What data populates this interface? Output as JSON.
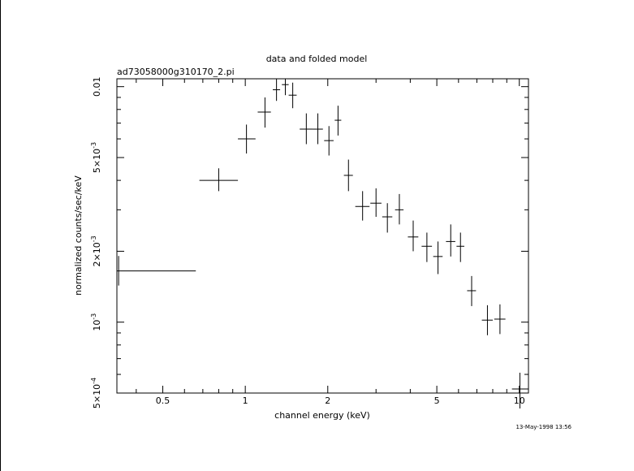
{
  "chart_data": {
    "type": "scatter",
    "title": "data and folded model",
    "subtitle": "ad73058000g310170_2.pi",
    "xlabel": "channel energy (keV)",
    "ylabel": "normalized counts/sec/keV",
    "timestamp": "13-May-1998 13:56",
    "x_scale": "log",
    "y_scale": "log",
    "xlim": [
      0.34,
      10.8
    ],
    "ylim": [
      0.0005,
      0.0108
    ],
    "x_ticks": [
      {
        "value": 0.5,
        "label": "0.5"
      },
      {
        "value": 1,
        "label": "1"
      },
      {
        "value": 2,
        "label": "2"
      },
      {
        "value": 5,
        "label": "5"
      },
      {
        "value": 10,
        "label": "10"
      }
    ],
    "y_ticks": [
      {
        "value": 0.0005,
        "mant": "5",
        "exp": "-4"
      },
      {
        "value": 0.001,
        "mant": "",
        "exp": "-3"
      },
      {
        "value": 0.002,
        "mant": "2",
        "exp": "-3"
      },
      {
        "value": 0.005,
        "mant": "5",
        "exp": "-3"
      },
      {
        "value": 0.01,
        "mant": "0.01",
        "exp": ""
      }
    ],
    "points": [
      {
        "x": 0.345,
        "xlo": 0.34,
        "xhi": 0.66,
        "y": 0.00165,
        "ylo": 0.00143,
        "yhi": 0.00191
      },
      {
        "x": 0.8,
        "xlo": 0.68,
        "xhi": 0.94,
        "y": 0.004,
        "ylo": 0.0036,
        "yhi": 0.0045
      },
      {
        "x": 1.01,
        "xlo": 0.94,
        "xhi": 1.09,
        "y": 0.006,
        "ylo": 0.0052,
        "yhi": 0.0069
      },
      {
        "x": 1.18,
        "xlo": 1.11,
        "xhi": 1.24,
        "y": 0.0078,
        "ylo": 0.0067,
        "yhi": 0.009
      },
      {
        "x": 1.3,
        "xlo": 1.26,
        "xhi": 1.34,
        "y": 0.0097,
        "ylo": 0.0087,
        "yhi": 0.0108
      },
      {
        "x": 1.4,
        "xlo": 1.36,
        "xhi": 1.44,
        "y": 0.0102,
        "ylo": 0.0092,
        "yhi": 0.0108
      },
      {
        "x": 1.49,
        "xlo": 1.44,
        "xhi": 1.54,
        "y": 0.0092,
        "ylo": 0.0081,
        "yhi": 0.0104
      },
      {
        "x": 1.67,
        "xlo": 1.58,
        "xhi": 1.76,
        "y": 0.0066,
        "ylo": 0.0057,
        "yhi": 0.0077
      },
      {
        "x": 1.84,
        "xlo": 1.76,
        "xhi": 1.92,
        "y": 0.0066,
        "ylo": 0.0057,
        "yhi": 0.0077
      },
      {
        "x": 2.02,
        "xlo": 1.94,
        "xhi": 2.1,
        "y": 0.0059,
        "ylo": 0.0051,
        "yhi": 0.0068
      },
      {
        "x": 2.18,
        "xlo": 2.12,
        "xhi": 2.24,
        "y": 0.0072,
        "ylo": 0.0062,
        "yhi": 0.0083
      },
      {
        "x": 2.38,
        "xlo": 2.29,
        "xhi": 2.47,
        "y": 0.0042,
        "ylo": 0.0036,
        "yhi": 0.0049
      },
      {
        "x": 2.68,
        "xlo": 2.52,
        "xhi": 2.84,
        "y": 0.0031,
        "ylo": 0.0027,
        "yhi": 0.0036
      },
      {
        "x": 3.0,
        "xlo": 2.86,
        "xhi": 3.14,
        "y": 0.0032,
        "ylo": 0.0028,
        "yhi": 0.0037
      },
      {
        "x": 3.3,
        "xlo": 3.16,
        "xhi": 3.44,
        "y": 0.0028,
        "ylo": 0.0024,
        "yhi": 0.0032
      },
      {
        "x": 3.65,
        "xlo": 3.52,
        "xhi": 3.78,
        "y": 0.003,
        "ylo": 0.0026,
        "yhi": 0.0035
      },
      {
        "x": 4.1,
        "xlo": 3.92,
        "xhi": 4.28,
        "y": 0.0023,
        "ylo": 0.002,
        "yhi": 0.0027
      },
      {
        "x": 4.6,
        "xlo": 4.4,
        "xhi": 4.8,
        "y": 0.0021,
        "ylo": 0.0018,
        "yhi": 0.0024
      },
      {
        "x": 5.05,
        "xlo": 4.85,
        "xhi": 5.25,
        "y": 0.0019,
        "ylo": 0.0016,
        "yhi": 0.0022
      },
      {
        "x": 5.62,
        "xlo": 5.4,
        "xhi": 5.84,
        "y": 0.0022,
        "ylo": 0.0019,
        "yhi": 0.0026
      },
      {
        "x": 6.1,
        "xlo": 5.9,
        "xhi": 6.3,
        "y": 0.0021,
        "ylo": 0.0018,
        "yhi": 0.0024
      },
      {
        "x": 6.7,
        "xlo": 6.45,
        "xhi": 6.95,
        "y": 0.00136,
        "ylo": 0.00117,
        "yhi": 0.00157
      },
      {
        "x": 7.65,
        "xlo": 7.3,
        "xhi": 8.0,
        "y": 0.00102,
        "ylo": 0.00088,
        "yhi": 0.00118
      },
      {
        "x": 8.5,
        "xlo": 8.1,
        "xhi": 8.9,
        "y": 0.00103,
        "ylo": 0.00089,
        "yhi": 0.00119
      },
      {
        "x": 10.05,
        "xlo": 9.4,
        "xhi": 10.8,
        "y": 0.00052,
        "ylo": 0.00043,
        "yhi": 0.00061
      }
    ]
  }
}
